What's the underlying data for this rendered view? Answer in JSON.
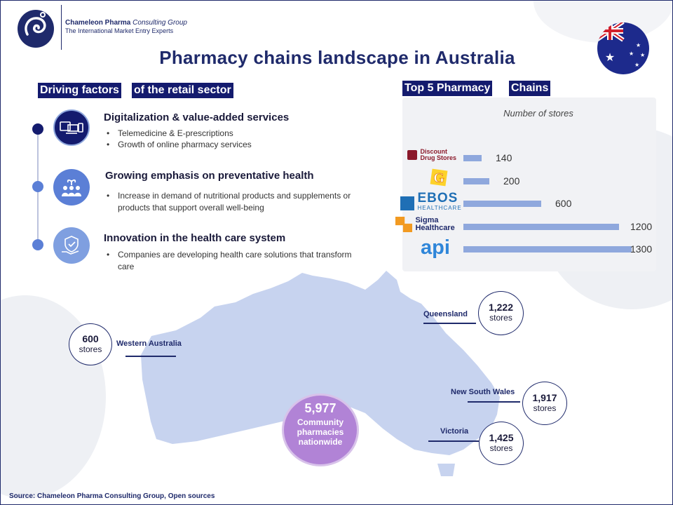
{
  "header": {
    "company_name": "Chameleon Pharma",
    "company_group": "Consulting Group",
    "tagline": "The International Market Entry Experts"
  },
  "title": "Pharmacy chains landscape in Australia",
  "drivers": {
    "heading_part1": "Driving factors",
    "heading_part2": "of the retail sector",
    "items": [
      {
        "title": "Digitalization & value-added services",
        "bullets": [
          "Telemedicine & E-prescriptions",
          "Growth of online pharmacy services"
        ]
      },
      {
        "title": "Growing emphasis on preventative health",
        "bullets": [
          "Increase in demand of nutritional products and supplements or products that support overall well-being"
        ]
      },
      {
        "title": "Innovation in the health care system",
        "bullets": [
          "Companies are developing health care solutions that transform care"
        ]
      }
    ]
  },
  "chains": {
    "heading_part1": "Top 5 Pharmacy",
    "heading_part2": "Chains",
    "logos": {
      "discount_line1": "Discount",
      "discount_line2": "Drug Stores",
      "ebos_line1": "EBOS",
      "ebos_line2": "HEALTHCARE",
      "sigma_line1": "Sigma",
      "sigma_line2": "Healthcare",
      "api": "api"
    }
  },
  "chart_data": {
    "type": "bar",
    "orientation": "horizontal",
    "title": "Number of stores",
    "categories": [
      "Discount Drug Stores",
      "Chemist Warehouse",
      "EBOS Healthcare",
      "Sigma Healthcare",
      "api"
    ],
    "values": [
      140,
      200,
      600,
      1200,
      1300
    ],
    "xlim": [
      0,
      1300
    ]
  },
  "map": {
    "regions": [
      {
        "name": "Western Australia",
        "stores": "600",
        "unit": "stores"
      },
      {
        "name": "Queensland",
        "stores": "1,222",
        "unit": "stores"
      },
      {
        "name": "New South Wales",
        "stores": "1,917",
        "unit": "stores"
      },
      {
        "name": "Victoria",
        "stores": "1,425",
        "unit": "stores"
      }
    ],
    "total": {
      "value": "5,977",
      "line1": "Community",
      "line2": "pharmacies",
      "line3": "nationwide"
    }
  },
  "source": "Source: Chameleon Pharma Consulting Group, Open sources",
  "colors": {
    "navy": "#1f2a6b",
    "heading_bg": "#141b6e",
    "bar": "#8fa8dd",
    "icon_blue": "#5b7fd6",
    "total_purple": "#b183d6",
    "map": "#c7d3ef"
  }
}
